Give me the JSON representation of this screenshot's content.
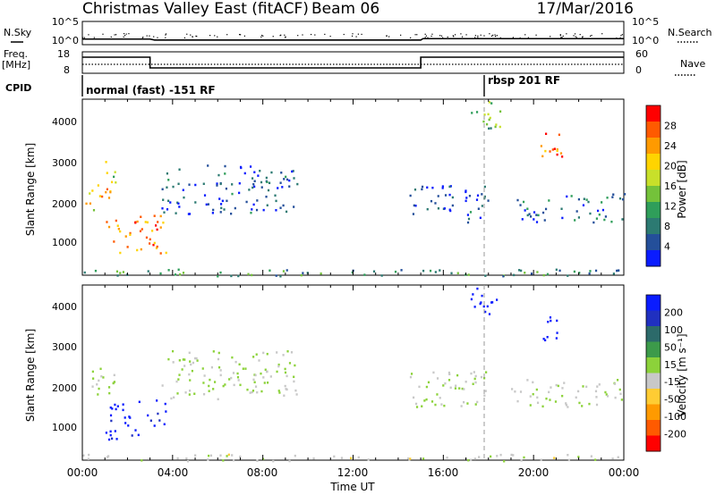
{
  "header": {
    "title": "Christmas Valley East (fitACF)",
    "beam": "Beam 06",
    "date": "17/Mar/2016"
  },
  "top_panels": {
    "nsky_label": "N.Sky",
    "nsearch_label": "N.Search",
    "nsky_ticks": [
      "10^5",
      "10^0"
    ],
    "nsky_right_ticks": [
      "10^5",
      "10^0"
    ],
    "freq_label_1": "Freq.",
    "freq_label_2": "[MHz]",
    "freq_ticks": [
      "18",
      "8"
    ],
    "nave_ticks": [
      "60",
      "0"
    ],
    "nave_label": "Nave",
    "cpid_label": "CPID",
    "cpid_segments": [
      {
        "text": "normal (fast) -151 RF",
        "start_hour": 0,
        "end_hour": 18
      },
      {
        "text": "rbsp 201 RF",
        "start_hour": 18,
        "end_hour": 24
      }
    ]
  },
  "x_axis": {
    "label": "Time UT",
    "ticks": [
      "00:00",
      "04:00",
      "08:00",
      "12:00",
      "16:00",
      "20:00",
      "00:00"
    ]
  },
  "power_panel": {
    "ylabel": "Slant Range [km]",
    "yticks": [
      "4000",
      "3000",
      "2000",
      "1000"
    ],
    "cbar_label": "Power [dB]",
    "cbar_ticks": [
      "28",
      "24",
      "20",
      "16",
      "12",
      "8",
      "4"
    ],
    "cbar_colors": [
      "#ff0000",
      "#ff5a00",
      "#ff9a00",
      "#ffd400",
      "#c8e02a",
      "#74c23a",
      "#2f9e5a",
      "#2c7a72",
      "#244f9a",
      "#0a1cff"
    ]
  },
  "velocity_panel": {
    "ylabel": "Slant Range [km]",
    "yticks": [
      "4000",
      "3000",
      "2000",
      "1000"
    ],
    "cbar_label": "Velocity [m s⁻¹]",
    "cbar_ticks": [
      "200",
      "100",
      "50",
      "15",
      "-15",
      "-50",
      "-100",
      "-200"
    ],
    "cbar_colors": [
      "#0a1cff",
      "#2030c0",
      "#2c6a6a",
      "#3c9a4a",
      "#8cd23a",
      "#c8c8c8",
      "#ffcc33",
      "#ff9a00",
      "#ff5a00",
      "#ff0000"
    ]
  },
  "chart_data": [
    {
      "type": "line",
      "title": "N.Sky / N.Search",
      "x": [
        0,
        3,
        3.2,
        15,
        15.1,
        24
      ],
      "series": [
        {
          "name": "N.Sky",
          "values": [
            1.2,
            1.2,
            1.0,
            1.0,
            1.3,
            1.3
          ]
        }
      ],
      "xlim": [
        0,
        24
      ]
    },
    {
      "type": "line",
      "title": "Freq. / Nave",
      "x": [
        0,
        3,
        3,
        15,
        15,
        24
      ],
      "series": [
        {
          "name": "Freq",
          "values": [
            15.5,
            15.5,
            10.5,
            10.5,
            15.5,
            15.5
          ]
        },
        {
          "name": "Nave",
          "values": [
            22,
            22,
            22,
            22,
            22,
            22
          ]
        }
      ],
      "xlim": [
        0,
        24
      ],
      "ylim": [
        8,
        18
      ]
    },
    {
      "type": "heatmap",
      "title": "Power [dB]",
      "xlabel": "Time UT",
      "ylabel": "Slant Range [km]",
      "xlim": [
        0,
        24
      ],
      "ylim": [
        180,
        4500
      ],
      "regions": [
        {
          "t0": 0.0,
          "t1": 1.5,
          "r0": 1800,
          "r1": 2500,
          "value": 20
        },
        {
          "t0": 1.0,
          "t1": 1.5,
          "r0": 2500,
          "r1": 3200,
          "value": 16
        },
        {
          "t0": 1.0,
          "t1": 3.8,
          "r0": 700,
          "r1": 1700,
          "value": 24
        },
        {
          "t0": 3.5,
          "t1": 9.5,
          "r0": 1700,
          "r1": 2900,
          "value": 6
        },
        {
          "t0": 14.5,
          "t1": 18.0,
          "r0": 1500,
          "r1": 2400,
          "value": 6
        },
        {
          "t0": 17.2,
          "t1": 18.5,
          "r0": 3800,
          "r1": 4500,
          "value": 14
        },
        {
          "t0": 20.3,
          "t1": 21.3,
          "r0": 3100,
          "r1": 3800,
          "value": 24
        },
        {
          "t0": 19.0,
          "t1": 24.0,
          "r0": 1500,
          "r1": 2200,
          "value": 8
        },
        {
          "t0": 0.0,
          "t1": 24.0,
          "r0": 180,
          "r1": 350,
          "value": 10
        }
      ]
    },
    {
      "type": "heatmap",
      "title": "Velocity [m s-1]",
      "xlabel": "Time UT",
      "ylabel": "Slant Range [km]",
      "xlim": [
        0,
        24
      ],
      "ylim": [
        180,
        4500
      ],
      "regions": [
        {
          "t0": 0.0,
          "t1": 1.5,
          "r0": 1800,
          "r1": 2500,
          "value": 0
        },
        {
          "t0": 1.0,
          "t1": 3.8,
          "r0": 700,
          "r1": 1700,
          "value": 200
        },
        {
          "t0": 3.5,
          "t1": 9.5,
          "r0": 1700,
          "r1": 2900,
          "value": 0
        },
        {
          "t0": 14.5,
          "t1": 18.0,
          "r0": 1500,
          "r1": 2400,
          "value": 0
        },
        {
          "t0": 17.2,
          "t1": 18.5,
          "r0": 3800,
          "r1": 4500,
          "value": 250
        },
        {
          "t0": 20.3,
          "t1": 21.3,
          "r0": 3100,
          "r1": 3800,
          "value": 250
        },
        {
          "t0": 19.0,
          "t1": 24.0,
          "r0": 1500,
          "r1": 2200,
          "value": 0
        },
        {
          "t0": 0.0,
          "t1": 24.0,
          "r0": 180,
          "r1": 350,
          "value": -20
        }
      ]
    }
  ]
}
